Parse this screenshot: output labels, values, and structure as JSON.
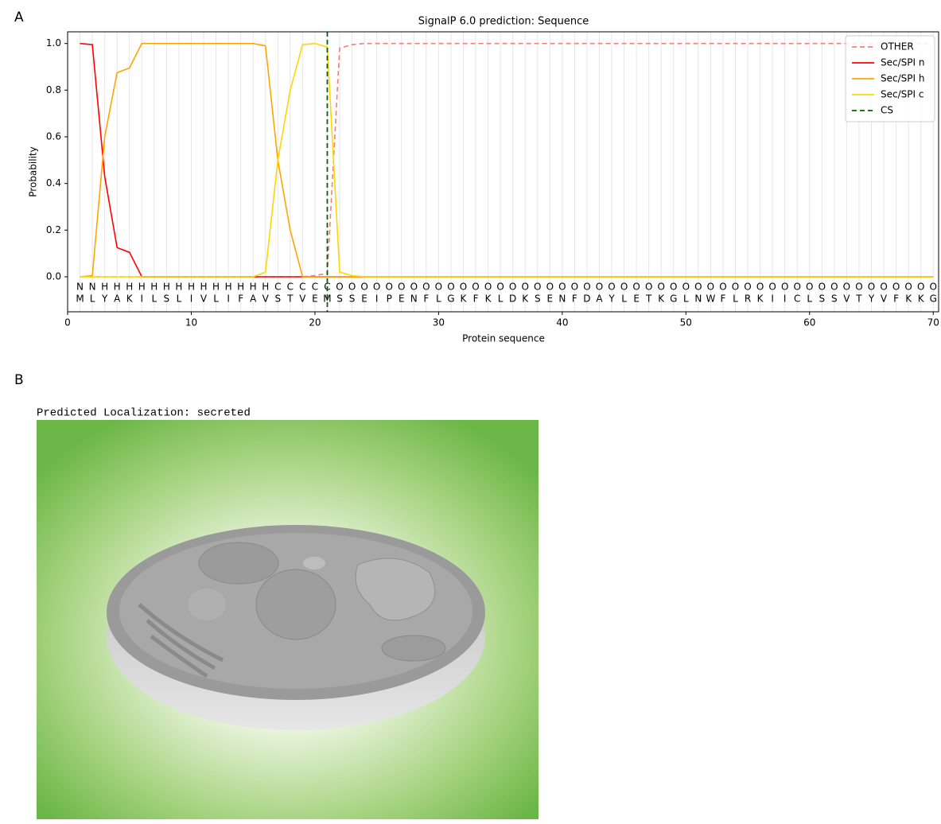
{
  "panel_a_label": "A",
  "panel_b_label": "B",
  "chart_data": {
    "type": "line",
    "title": "SignalP 6.0 prediction: Sequence",
    "x_label": "Protein sequence",
    "y_label": "Probability",
    "x": [
      1,
      2,
      3,
      4,
      5,
      6,
      7,
      8,
      9,
      10,
      11,
      12,
      13,
      14,
      15,
      16,
      17,
      18,
      19,
      20,
      21,
      22,
      23,
      24,
      25,
      26,
      27,
      28,
      29,
      30,
      31,
      32,
      33,
      34,
      35,
      36,
      37,
      38,
      39,
      40,
      41,
      42,
      43,
      44,
      45,
      46,
      47,
      48,
      49,
      50,
      51,
      52,
      53,
      54,
      55,
      56,
      57,
      58,
      59,
      60,
      61,
      62,
      63,
      64,
      65,
      66,
      67,
      68,
      69,
      70
    ],
    "sequence": [
      "M",
      "L",
      "Y",
      "A",
      "K",
      "I",
      "L",
      "S",
      "L",
      "I",
      "V",
      "L",
      "I",
      "F",
      "A",
      "V",
      "S",
      "T",
      "V",
      "E",
      "M",
      "S",
      "S",
      "E",
      "I",
      "P",
      "E",
      "N",
      "F",
      "L",
      "G",
      "K",
      "F",
      "K",
      "L",
      "D",
      "K",
      "S",
      "E",
      "N",
      "F",
      "D",
      "A",
      "Y",
      "L",
      "E",
      "T",
      "K",
      "G",
      "L",
      "N",
      "W",
      "F",
      "L",
      "R",
      "K",
      "I",
      "I",
      "C",
      "L",
      "S",
      "S",
      "V",
      "T",
      "Y",
      "V",
      "F",
      "K",
      "K",
      "G"
    ],
    "region_labels": [
      "N",
      "N",
      "H",
      "H",
      "H",
      "H",
      "H",
      "H",
      "H",
      "H",
      "H",
      "H",
      "H",
      "H",
      "H",
      "H",
      "C",
      "C",
      "C",
      "C",
      "C",
      "O",
      "O",
      "O",
      "O",
      "O",
      "O",
      "O",
      "O",
      "O",
      "O",
      "O",
      "O",
      "O",
      "O",
      "O",
      "O",
      "O",
      "O",
      "O",
      "O",
      "O",
      "O",
      "O",
      "O",
      "O",
      "O",
      "O",
      "O",
      "O",
      "O",
      "O",
      "O",
      "O",
      "O",
      "O",
      "O",
      "O",
      "O",
      "O",
      "O",
      "O",
      "O",
      "O",
      "O",
      "O",
      "O",
      "O",
      "O",
      "O"
    ],
    "region_colors": {
      "N": "#ff0000",
      "H": "#ffa500",
      "C": "#ffd700",
      "O": "#808080"
    },
    "series": [
      {
        "name": "OTHER",
        "color": "#f08080",
        "linestyle": "dashed",
        "values": [
          0,
          0,
          0,
          0,
          0,
          0,
          0,
          0,
          0,
          0,
          0,
          0,
          0,
          0,
          0,
          0,
          0,
          0,
          0,
          0.005,
          0.015,
          0.98,
          0.995,
          1,
          1,
          1,
          1,
          1,
          1,
          1,
          1,
          1,
          1,
          1,
          1,
          1,
          1,
          1,
          1,
          1,
          1,
          1,
          1,
          1,
          1,
          1,
          1,
          1,
          1,
          1,
          1,
          1,
          1,
          1,
          1,
          1,
          1,
          1,
          1,
          1,
          1,
          1,
          1,
          1,
          1,
          1,
          1,
          1,
          1,
          1
        ]
      },
      {
        "name": "Sec/SPI n",
        "color": "#ff0000",
        "linestyle": "solid",
        "values": [
          1,
          0.995,
          0.43,
          0.125,
          0.105,
          0,
          0,
          0,
          0,
          0,
          0,
          0,
          0,
          0,
          0,
          0,
          0,
          0,
          0,
          0,
          0,
          0,
          0,
          0,
          0,
          0,
          0,
          0,
          0,
          0,
          0,
          0,
          0,
          0,
          0,
          0,
          0,
          0,
          0,
          0,
          0,
          0,
          0,
          0,
          0,
          0,
          0,
          0,
          0,
          0,
          0,
          0,
          0,
          0,
          0,
          0,
          0,
          0,
          0,
          0,
          0,
          0,
          0,
          0,
          0,
          0,
          0,
          0,
          0,
          0
        ]
      },
      {
        "name": "Sec/SPI h",
        "color": "#ffa500",
        "linestyle": "solid",
        "values": [
          0,
          0.005,
          0.6,
          0.875,
          0.895,
          1,
          1,
          1,
          1,
          1,
          1,
          1,
          1,
          1,
          1,
          0.99,
          0.5,
          0.2,
          0,
          0,
          0,
          0,
          0,
          0,
          0,
          0,
          0,
          0,
          0,
          0,
          0,
          0,
          0,
          0,
          0,
          0,
          0,
          0,
          0,
          0,
          0,
          0,
          0,
          0,
          0,
          0,
          0,
          0,
          0,
          0,
          0,
          0,
          0,
          0,
          0,
          0,
          0,
          0,
          0,
          0,
          0,
          0,
          0,
          0,
          0,
          0,
          0,
          0,
          0,
          0
        ]
      },
      {
        "name": "Sec/SPI c",
        "color": "#ffd700",
        "linestyle": "solid",
        "values": [
          0,
          0,
          0,
          0,
          0,
          0,
          0,
          0,
          0,
          0,
          0,
          0,
          0,
          0,
          0,
          0.02,
          0.5,
          0.8,
          0.995,
          1,
          0.985,
          0.02,
          0.005,
          0,
          0,
          0,
          0,
          0,
          0,
          0,
          0,
          0,
          0,
          0,
          0,
          0,
          0,
          0,
          0,
          0,
          0,
          0,
          0,
          0,
          0,
          0,
          0,
          0,
          0,
          0,
          0,
          0,
          0,
          0,
          0,
          0,
          0,
          0,
          0,
          0,
          0,
          0,
          0,
          0,
          0,
          0,
          0,
          0,
          0,
          0
        ]
      }
    ],
    "cs": {
      "name": "CS",
      "color": "#006400",
      "linestyle": "dashed",
      "position": 21
    },
    "xlim": [
      0,
      70.5
    ],
    "ylim": [
      -0.15,
      1.05
    ],
    "xticks": [
      0,
      10,
      20,
      30,
      40,
      50,
      60,
      70
    ],
    "yticks": [
      {
        "value": 0,
        "label": "0.0"
      },
      {
        "value": 0.2,
        "label": "0.2"
      },
      {
        "value": 0.4,
        "label": "0.4"
      },
      {
        "value": 0.6,
        "label": "0.6"
      },
      {
        "value": 0.8,
        "label": "0.8"
      },
      {
        "value": 1,
        "label": "1.0"
      }
    ],
    "legend": "upper right"
  },
  "localization": {
    "text": "Predicted Localization: secreted"
  }
}
